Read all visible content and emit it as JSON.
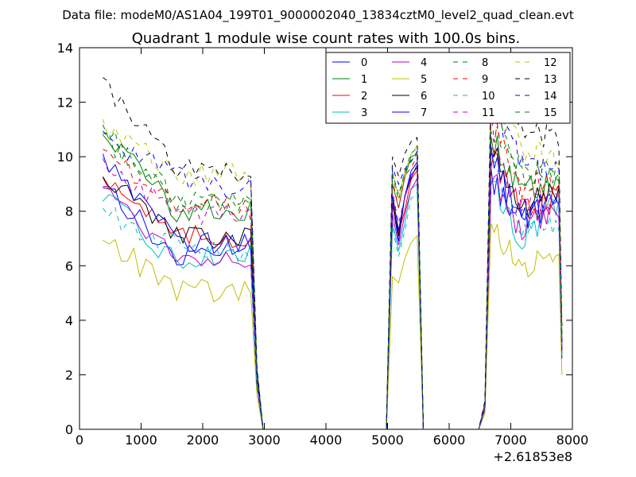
{
  "chart_data": {
    "type": "line",
    "suptitle": "Data file: modeM0/AS1A04_199T01_9000002040_13834cztM0_level2_quad_clean.evt",
    "title": "Quadrant 1 module wise count rates with 100.0s bins.",
    "xlabel": "",
    "ylabel": "",
    "xlim": [
      0,
      8000
    ],
    "ylim": [
      0,
      14
    ],
    "x_offset_text": "+2.61853e8",
    "xticks": [
      0,
      1000,
      2000,
      3000,
      4000,
      5000,
      6000,
      7000,
      8000
    ],
    "yticks": [
      0,
      2,
      4,
      6,
      8,
      10,
      12,
      14
    ],
    "legend": {
      "location": "top-right",
      "columns": 4
    },
    "x_segments": {
      "active_1": [
        380,
        2780
      ],
      "drop_1": [
        2780,
        2980
      ],
      "zero_1": [
        2980,
        4980
      ],
      "active_2": [
        5080,
        5480
      ],
      "zero_2": [
        5580,
        6480
      ],
      "rise_3": [
        6480,
        6580
      ],
      "active_3": [
        6680,
        7780
      ],
      "drop_3": [
        7780,
        7830
      ]
    },
    "series": [
      {
        "name": "0",
        "color": "#0000ff",
        "dash": "solid",
        "p1": [
          9.1,
          6.2,
          7.0
        ],
        "p2": [
          8.3,
          7.2,
          9.6
        ],
        "p3": [
          9.1,
          7.6,
          8.8
        ],
        "end": 3.0
      },
      {
        "name": "1",
        "color": "#008000",
        "dash": "solid",
        "p1": [
          11.0,
          8.0,
          8.0
        ],
        "p2": [
          9.0,
          7.9,
          10.1
        ],
        "p3": [
          10.7,
          8.7,
          9.3
        ],
        "end": 3.7
      },
      {
        "name": "2",
        "color": "#ff0000",
        "dash": "solid",
        "p1": [
          9.4,
          7.0,
          7.1
        ],
        "p2": [
          8.2,
          7.1,
          9.5
        ],
        "p3": [
          10.0,
          8.0,
          8.5
        ],
        "end": 2.9
      },
      {
        "name": "3",
        "color": "#00bfbf",
        "dash": "solid",
        "p1": [
          8.5,
          6.1,
          6.6
        ],
        "p2": [
          7.6,
          6.5,
          9.0
        ],
        "p3": [
          9.0,
          7.0,
          8.3
        ],
        "end": 2.8
      },
      {
        "name": "4",
        "color": "#bf00bf",
        "dash": "solid",
        "p1": [
          9.0,
          6.3,
          6.4
        ],
        "p2": [
          7.9,
          6.8,
          9.2
        ],
        "p3": [
          9.3,
          7.2,
          8.0
        ],
        "end": 3.1
      },
      {
        "name": "5",
        "color": "#bfbf00",
        "dash": "solid",
        "p1": [
          7.0,
          5.1,
          5.0
        ],
        "p2": [
          5.6,
          5.5,
          7.1
        ],
        "p3": [
          7.3,
          6.1,
          6.0
        ],
        "end": 2.0
      },
      {
        "name": "6",
        "color": "#000000",
        "dash": "solid",
        "p1": [
          9.3,
          7.1,
          7.0
        ],
        "p2": [
          8.4,
          7.3,
          9.7
        ],
        "p3": [
          10.3,
          8.1,
          8.8
        ],
        "end": 3.2
      },
      {
        "name": "7",
        "color": "#0000ff",
        "dash": "solid",
        "p1": [
          10.1,
          7.0,
          6.8
        ],
        "p2": [
          8.6,
          7.0,
          9.8
        ],
        "p3": [
          10.0,
          7.6,
          8.5
        ],
        "end": 2.6
      },
      {
        "name": "8",
        "color": "#008000",
        "dash": "dashed",
        "p1": [
          10.8,
          8.2,
          8.3
        ],
        "p2": [
          9.3,
          8.2,
          10.3
        ],
        "p3": [
          11.0,
          9.3,
          9.2
        ],
        "end": 3.4
      },
      {
        "name": "9",
        "color": "#ff0000",
        "dash": "dashed",
        "p1": [
          10.2,
          8.3,
          8.1
        ],
        "p2": [
          9.1,
          8.0,
          10.0
        ],
        "p3": [
          11.2,
          9.0,
          9.0
        ],
        "end": 3.3
      },
      {
        "name": "10",
        "color": "#00bfbf",
        "dash": "dashed",
        "p1": [
          8.0,
          6.7,
          6.3
        ],
        "p2": [
          7.4,
          6.3,
          8.7
        ],
        "p3": [
          9.6,
          7.4,
          7.6
        ],
        "end": 2.7
      },
      {
        "name": "11",
        "color": "#bf00bf",
        "dash": "dashed",
        "p1": [
          9.8,
          7.9,
          7.8
        ],
        "p2": [
          8.7,
          7.6,
          9.7
        ],
        "p3": [
          10.5,
          8.2,
          8.2
        ],
        "end": 3.0
      },
      {
        "name": "12",
        "color": "#bfbf00",
        "dash": "dashed",
        "p1": [
          11.2,
          9.3,
          9.3
        ],
        "p2": [
          9.5,
          8.6,
          10.4
        ],
        "p3": [
          12.4,
          10.4,
          9.8
        ],
        "end": 3.6
      },
      {
        "name": "13",
        "color": "#000000",
        "dash": "dashed",
        "p1": [
          12.7,
          9.6,
          9.2
        ],
        "p2": [
          10.0,
          9.5,
          10.7
        ],
        "p3": [
          13.1,
          11.0,
          10.7
        ],
        "end": 3.8
      },
      {
        "name": "14",
        "color": "#0000ff",
        "dash": "dashed",
        "p1": [
          10.7,
          9.3,
          8.8
        ],
        "p2": [
          9.6,
          8.7,
          10.2
        ],
        "p3": [
          12.0,
          9.8,
          9.3
        ],
        "end": 3.5
      },
      {
        "name": "15",
        "color": "#008000",
        "dash": "dashed",
        "p1": [
          10.9,
          8.5,
          8.4
        ],
        "p2": [
          9.4,
          8.4,
          10.1
        ],
        "p3": [
          11.8,
          9.5,
          9.4
        ],
        "end": 3.4
      }
    ]
  }
}
